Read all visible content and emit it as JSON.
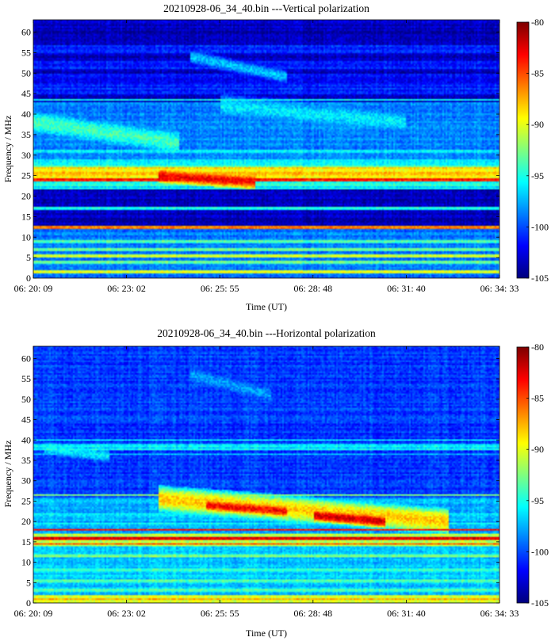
{
  "chart_data": [
    {
      "type": "heatmap",
      "title": "20210928-06_34_40.bin ---Vertical polarization",
      "xlabel": "Time (UT)",
      "ylabel": "Frequency / MHz",
      "x_ticks": [
        "06: 20: 09",
        "06: 23: 02",
        "06: 25: 55",
        "06: 28: 48",
        "06: 31: 40",
        "06: 34: 33"
      ],
      "y_ticks": [
        0,
        5,
        10,
        15,
        20,
        25,
        30,
        35,
        40,
        45,
        50,
        55,
        60
      ],
      "ylim": [
        0,
        63
      ],
      "colorbar": {
        "ticks": [
          -80,
          -85,
          -90,
          -95,
          -100,
          -105
        ],
        "range": [
          -105,
          -80
        ],
        "colormap": "jet"
      },
      "background_level": -103.5,
      "bands": [
        {
          "f_low": 0,
          "f_high": 12.5,
          "level": -99
        },
        {
          "f_low": 22.5,
          "f_high": 23.5,
          "level": -95
        },
        {
          "f_low": 23.5,
          "f_high": 27,
          "level": -89
        },
        {
          "f_low": 27,
          "f_high": 29,
          "level": -96
        },
        {
          "f_low": 29,
          "f_high": 43,
          "level": -98.5
        },
        {
          "f_low": 45,
          "f_high": 47,
          "level": -101
        },
        {
          "f_low": 47,
          "f_high": 50,
          "level": -102
        },
        {
          "f_low": 51,
          "f_high": 53,
          "level": -101
        },
        {
          "f_low": 55,
          "f_high": 57,
          "level": -101
        }
      ],
      "lines": [
        {
          "f": 1.5,
          "level": -90
        },
        {
          "f": 4,
          "level": -93
        },
        {
          "f": 5.5,
          "level": -91
        },
        {
          "f": 7,
          "level": -93
        },
        {
          "f": 9,
          "level": -94
        },
        {
          "f": 12.5,
          "level": -86
        },
        {
          "f": 17,
          "level": -95
        },
        {
          "f": 22,
          "level": -96
        },
        {
          "f": 24,
          "level": -84
        },
        {
          "f": 25.5,
          "level": -88
        },
        {
          "f": 27,
          "level": -94
        },
        {
          "f": 31,
          "level": -96
        },
        {
          "f": 43.5,
          "level": -95
        }
      ],
      "bursts": [
        {
          "t_start": "06:20:09",
          "t_end": "06:24:40",
          "f_start": 38,
          "f_end": 33,
          "width": 2.5,
          "level": -94
        },
        {
          "t_start": "06:24:00",
          "t_end": "06:27:00",
          "f_start": 25,
          "f_end": 23.5,
          "width": 1.2,
          "level": -83
        },
        {
          "t_start": "06:25:55",
          "t_end": "06:31:40",
          "f_start": 42,
          "f_end": 38,
          "width": 2.5,
          "level": -96
        },
        {
          "t_start": "06:25:00",
          "t_end": "06:28:00",
          "f_start": 54,
          "f_end": 49,
          "width": 1.5,
          "level": -97
        }
      ]
    },
    {
      "type": "heatmap",
      "title": "20210928-06_34_40.bin ---Horizontal polarization",
      "xlabel": "Time (UT)",
      "ylabel": "Frequency / MHz",
      "x_ticks": [
        "06: 20: 09",
        "06: 23: 02",
        "06: 25: 55",
        "06: 28: 48",
        "06: 31: 40",
        "06: 34: 33"
      ],
      "y_ticks": [
        0,
        5,
        10,
        15,
        20,
        25,
        30,
        35,
        40,
        45,
        50,
        55,
        60
      ],
      "ylim": [
        0,
        63
      ],
      "colorbar": {
        "ticks": [
          -80,
          -85,
          -90,
          -95,
          -100,
          -105
        ],
        "range": [
          -105,
          -80
        ],
        "colormap": "jet"
      },
      "background_level": -100.5,
      "bands": [
        {
          "f_low": 0,
          "f_high": 2,
          "level": -91
        },
        {
          "f_low": 2,
          "f_high": 14,
          "level": -97
        },
        {
          "f_low": 14,
          "f_high": 17,
          "level": -91
        },
        {
          "f_low": 17,
          "f_high": 26,
          "level": -97.5
        },
        {
          "f_low": 37.5,
          "f_high": 39,
          "level": -96
        }
      ],
      "lines": [
        {
          "f": 1,
          "level": -88
        },
        {
          "f": 3,
          "level": -94
        },
        {
          "f": 5.5,
          "level": -94
        },
        {
          "f": 8,
          "level": -95
        },
        {
          "f": 11.5,
          "level": -93
        },
        {
          "f": 14.5,
          "level": -86
        },
        {
          "f": 16,
          "level": -83
        },
        {
          "f": 18,
          "level": -83
        },
        {
          "f": 19.5,
          "level": -95
        },
        {
          "f": 21.5,
          "level": -96
        },
        {
          "f": 26.5,
          "level": -93
        },
        {
          "f": 36.5,
          "level": -97
        },
        {
          "f": 40,
          "level": -96
        }
      ],
      "bursts": [
        {
          "t_start": "06:24:00",
          "t_end": "06:33:00",
          "f_start": 25.5,
          "f_end": 20,
          "width": 2.2,
          "level": -88
        },
        {
          "t_start": "06:25:30",
          "t_end": "06:28:00",
          "f_start": 24,
          "f_end": 22.5,
          "width": 1,
          "level": -83
        },
        {
          "t_start": "06:28:48",
          "t_end": "06:31:00",
          "f_start": 21.5,
          "f_end": 20,
          "width": 1,
          "level": -82
        },
        {
          "t_start": "06:20:30",
          "t_end": "06:22:30",
          "f_start": 38,
          "f_end": 36,
          "width": 1.5,
          "level": -96
        },
        {
          "t_start": "06:25:00",
          "t_end": "06:27:30",
          "f_start": 56,
          "f_end": 51,
          "width": 2,
          "level": -98
        }
      ]
    }
  ]
}
